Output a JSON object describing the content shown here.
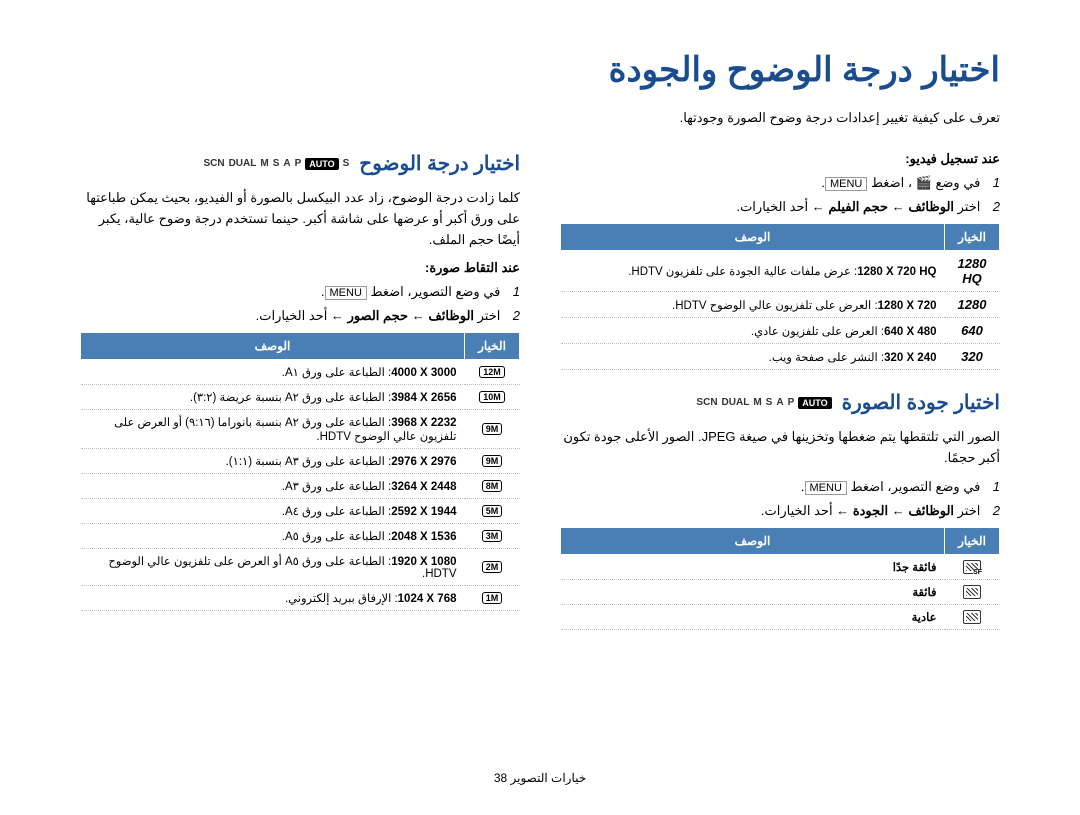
{
  "page_title": "اختيار درجة الوضوح والجودة",
  "intro": "تعرف على كيفية تغيير إعدادات درجة وضوح الصورة وجودتها.",
  "footer": "خيارات التصوير  38",
  "right": {
    "heading": "اختيار درجة الوضوح",
    "mode_letters": [
      "S",
      "AUTO",
      "P",
      "A",
      "S",
      "M",
      "DUAL",
      "SCN"
    ],
    "para": "كلما زادت درجة الوضوح، زاد عدد البيكسل بالصورة أو الفيديو، بحيث يمكن طباعتها على ورق أكبر أو عرضها على شاشة أكبر. حينما تستخدم درجة وضوح عالية، يكبر أيضًا حجم الملف.",
    "sub1": "عند التقاط صورة:",
    "step1_a": "في وضع التصوير، اضغط ",
    "step1_menu": "MENU",
    "step2_a": "اختر ",
    "step2_b": "الوظائف",
    "step2_c": " ← ",
    "step2_d": "حجم الصور",
    "step2_e": " ← أحد الخيارات.",
    "th_option": "الخيار",
    "th_desc": "الوصف",
    "photo_rows": [
      {
        "icon": "12M",
        "dim": "4000 X 3000",
        "desc": ": الطباعة على ورق A١."
      },
      {
        "icon": "10M",
        "dim": "3984 X 2656",
        "desc": ": الطباعة على ورق A٢ بنسبة عريضة (٣:٢)."
      },
      {
        "icon": "9M",
        "dim": "3968 X 2232",
        "desc": ": الطباعة على ورق A٢ بنسبة بانوراما (٩:١٦) أو العرض على تلفزيون عالي الوضوح HDTV."
      },
      {
        "icon": "9M",
        "dim": "2976 X 2976",
        "desc": ": الطباعة على ورق A٣ بنسبة (١:١)."
      },
      {
        "icon": "8M",
        "dim": "3264 X 2448",
        "desc": ": الطباعة على ورق A٣."
      },
      {
        "icon": "5M",
        "dim": "2592 X 1944",
        "desc": ": الطباعة على ورق A٤."
      },
      {
        "icon": "3M",
        "dim": "2048 X 1536",
        "desc": ": الطباعة على ورق A٥."
      },
      {
        "icon": "2M",
        "dim": "1920 X 1080",
        "desc": ": الطباعة على ورق A٥ أو العرض على تلفزيون عالي الوضوح HDTV."
      },
      {
        "icon": "1M",
        "dim": "1024 X 768",
        "desc": ": الإرفاق ببريد إلكتروني."
      }
    ]
  },
  "left": {
    "sub1": "عند تسجيل فيديو:",
    "step1_a": "في وضع ",
    "step1_vid": "🎬",
    "step1_b": "، اضغط ",
    "step1_menu": "MENU",
    "step2_a": "اختر ",
    "step2_b": "الوظائف",
    "step2_c": " ← ",
    "step2_d": "حجم الفيلم",
    "step2_e": " ← أحد الخيارات.",
    "th_option": "الخيار",
    "th_desc": "الوصف",
    "video_rows": [
      {
        "icon": "1280 HQ",
        "dim": "1280 X 720 HQ",
        "desc": ": عرض ملفات عالية الجودة على تلفزيون HDTV."
      },
      {
        "icon": "1280",
        "dim": "1280 X 720",
        "desc": ": العرض على تلفزيون عالي الوضوح HDTV."
      },
      {
        "icon": "640",
        "dim": "640 X 480",
        "desc": ": العرض على تلفزيون عادي."
      },
      {
        "icon": "320",
        "dim": "320 X 240",
        "desc": ": النشر على صفحة ويب."
      }
    ],
    "heading2": "اختيار جودة الصورة",
    "mode_letters2": [
      "AUTO",
      "P",
      "A",
      "S",
      "M",
      "DUAL",
      "SCN"
    ],
    "para2": "الصور التي تلتقطها يتم ضغطها وتخزينها في صيغة JPEG. الصور الأعلى جودة تكون أكبر حجمًا.",
    "step1b_a": "في وضع التصوير، اضغط ",
    "step1b_menu": "MENU",
    "step2b_a": "اختر ",
    "step2b_b": "الوظائف",
    "step2b_c": " ← ",
    "step2b_d": "الجودة",
    "step2b_e": " ← أحد الخيارات.",
    "q_th_option": "الخيار",
    "q_th_desc": "الوصف",
    "quality_rows": [
      {
        "cls": "sf",
        "desc": "فائقة جدًا"
      },
      {
        "cls": "f",
        "desc": "فائقة"
      },
      {
        "cls": "n",
        "desc": "عادية"
      }
    ]
  }
}
